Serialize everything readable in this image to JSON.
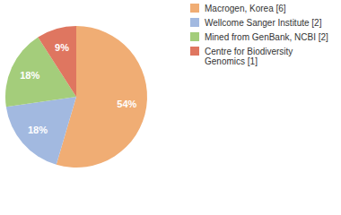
{
  "chart_data": {
    "type": "pie",
    "categories": [
      "Macrogen, Korea [6]",
      "Wellcome Sanger Institute [2]",
      "Mined from GenBank, NCBI [2]",
      "Centre for Biodiversity Genomics [1]"
    ],
    "values": [
      54,
      18,
      18,
      9
    ],
    "value_labels": [
      "54%",
      "18%",
      "18%",
      "9%"
    ],
    "data_labels": true,
    "legend": "top-right",
    "colors": [
      "#f0ad74",
      "#a2b9e0",
      "#a4cd7b",
      "#df7660"
    ]
  }
}
